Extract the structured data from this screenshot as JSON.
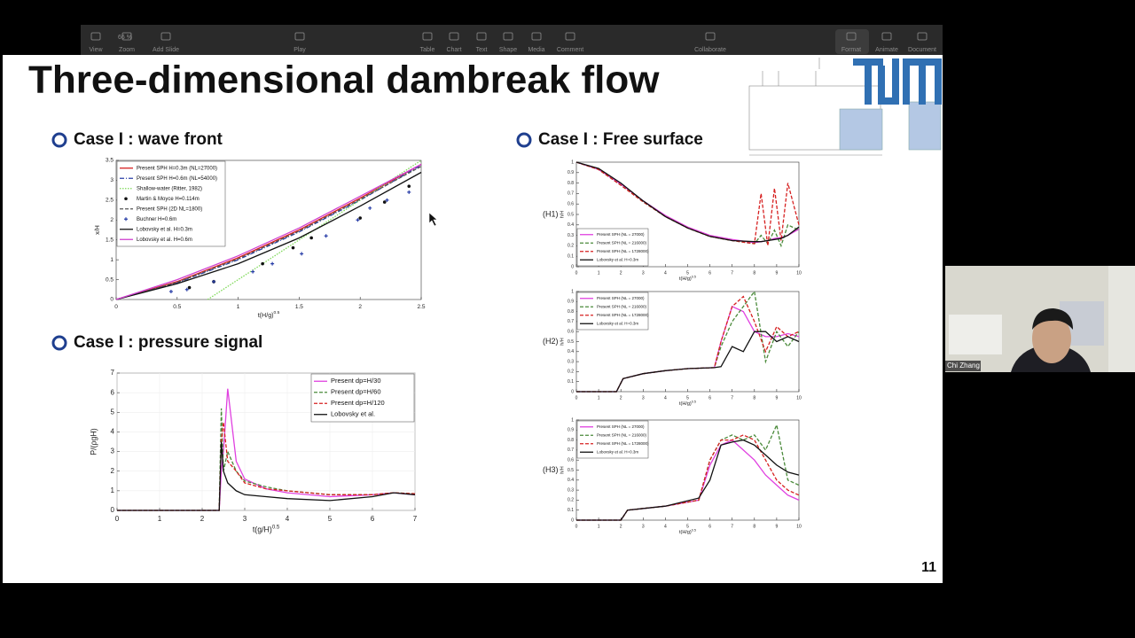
{
  "toolbar": {
    "zoom": "66 %",
    "items": [
      "View",
      "Zoom",
      "Add Slide",
      "Play",
      "Table",
      "Chart",
      "Text",
      "Shape",
      "Media",
      "Comment",
      "Collaborate",
      "Format",
      "Animate",
      "Document"
    ]
  },
  "slide": {
    "title": "Three-dimensional dambreak flow",
    "sections": [
      "Case I  : wave front",
      "Case I : pressure signal",
      "Case I  : Free surface"
    ],
    "page_number": "11"
  },
  "charts": [
    {
      "type": "line",
      "xlim": [
        0,
        2.5
      ],
      "ylim": [
        0,
        3.5
      ],
      "xticks": [
        0,
        0.5,
        1,
        1.5,
        2,
        2.5
      ],
      "yticks": [
        0,
        0.5,
        1,
        1.5,
        2,
        2.5,
        3,
        3.5
      ],
      "xlabel": {
        "text": "t(H/g)",
        "sup": "0.5"
      },
      "ylabel": "x/H",
      "grid": false,
      "legend": "upper left",
      "series": [
        {
          "name": "Present SPH H=0.3m (NL=27000)",
          "color": "#d62020",
          "style": "solid",
          "x": [
            0,
            0.5,
            1,
            1.5,
            2,
            2.5
          ],
          "values": [
            0,
            0.45,
            1.05,
            1.75,
            2.55,
            3.4
          ]
        },
        {
          "name": "Present SPH H=0.6m (NL=54000)",
          "color": "#2a3fa8",
          "style": "dashdot",
          "x": [
            0,
            0.5,
            1,
            1.5,
            2,
            2.5
          ],
          "values": [
            0,
            0.42,
            1.0,
            1.7,
            2.5,
            3.38
          ]
        },
        {
          "name": "Shallow-water (Ritter, 1982)",
          "color": "#7ed957",
          "style": "dotted",
          "x": [
            0.75,
            1.5,
            2.5
          ],
          "values": [
            0,
            1.5,
            3.5
          ]
        },
        {
          "name": "Martin & Moyce H=0.114m",
          "color": "#111111",
          "style": "dot",
          "x": [
            0.6,
            0.8,
            1.2,
            1.45,
            1.6,
            2.0,
            2.2,
            2.4
          ],
          "values": [
            0.3,
            0.45,
            0.9,
            1.3,
            1.55,
            2.05,
            2.45,
            2.85
          ]
        },
        {
          "name": "Present SPH (2D NL=1800)",
          "color": "#555555",
          "style": "dashed",
          "x": [
            0,
            0.5,
            1,
            1.5,
            2,
            2.5
          ],
          "values": [
            0,
            0.43,
            1.02,
            1.72,
            2.52,
            3.35
          ]
        },
        {
          "name": "Buchner H=0.6m",
          "color": "#2a3fa8",
          "style": "plus",
          "x": [
            0.45,
            0.58,
            0.8,
            1.12,
            1.28,
            1.52,
            1.72,
            1.98,
            2.08,
            2.22,
            2.4
          ],
          "values": [
            0.2,
            0.25,
            0.45,
            0.7,
            0.9,
            1.15,
            1.6,
            2.0,
            2.3,
            2.5,
            2.7
          ]
        },
        {
          "name": "Lobovsky et al. H=0.3m",
          "color": "#111111",
          "style": "solid",
          "x": [
            0,
            0.5,
            1,
            1.5,
            2,
            2.5
          ],
          "values": [
            0,
            0.4,
            0.9,
            1.55,
            2.35,
            3.2
          ]
        },
        {
          "name": "Lobovsky et al. H=0.6m",
          "color": "#d040d0",
          "style": "solid",
          "x": [
            0,
            0.5,
            1,
            1.5,
            2,
            2.5
          ],
          "values": [
            0,
            0.5,
            1.1,
            1.8,
            2.6,
            3.4
          ]
        }
      ]
    },
    {
      "type": "line",
      "xlim": [
        0,
        7
      ],
      "ylim": [
        0,
        7
      ],
      "xticks": [
        0,
        1,
        2,
        3,
        4,
        5,
        6,
        7
      ],
      "yticks": [
        0,
        1,
        2,
        3,
        4,
        5,
        6,
        7
      ],
      "xlabel": {
        "text": "t(g/H)",
        "sup": "0.5"
      },
      "ylabel": "P/(ρgH)",
      "grid": true,
      "legend": "upper right",
      "series": [
        {
          "name": "Present dp=H/30",
          "color": "#e040e0",
          "style": "solid",
          "x": [
            0,
            2.4,
            2.45,
            2.5,
            2.6,
            2.8,
            3,
            3.5,
            4,
            5,
            6,
            6.5,
            7
          ],
          "values": [
            0,
            0,
            2,
            3,
            6.2,
            2.5,
            1.6,
            1.1,
            0.9,
            0.7,
            0.8,
            0.9,
            0.8
          ]
        },
        {
          "name": "Present dp=H/60",
          "color": "#4a8a3a",
          "style": "dashed",
          "x": [
            0,
            2.4,
            2.45,
            2.5,
            2.6,
            2.8,
            3,
            3.5,
            4,
            5,
            6,
            6.5,
            7
          ],
          "values": [
            0,
            0,
            5.2,
            2,
            3,
            2,
            1.5,
            1.2,
            1.0,
            0.8,
            0.8,
            0.9,
            0.85
          ]
        },
        {
          "name": "Present dp=H/120",
          "color": "#d62020",
          "style": "dashed",
          "x": [
            0,
            2.4,
            2.45,
            2.5,
            2.6,
            2.8,
            3,
            3.5,
            4,
            5,
            6,
            6.5,
            7
          ],
          "values": [
            0,
            0,
            3.5,
            4.5,
            2.5,
            2,
            1.4,
            1.1,
            1,
            0.8,
            0.8,
            0.9,
            0.85
          ]
        },
        {
          "name": "Lobovsky et al.",
          "color": "#111111",
          "style": "solid",
          "x": [
            0,
            2.4,
            2.45,
            2.5,
            2.6,
            2.8,
            3,
            3.5,
            4,
            5,
            6,
            6.5,
            7
          ],
          "values": [
            0,
            0,
            3.5,
            2,
            1.4,
            1,
            0.8,
            0.7,
            0.6,
            0.5,
            0.7,
            0.9,
            0.8
          ]
        }
      ]
    },
    {
      "type": "line",
      "label": "(H1)",
      "xlim": [
        0,
        10
      ],
      "ylim": [
        0,
        1
      ],
      "xticks": [
        0,
        1,
        2,
        3,
        4,
        5,
        6,
        7,
        8,
        9,
        10
      ],
      "yticks": [
        0,
        0.1,
        0.2,
        0.3,
        0.4,
        0.5,
        0.6,
        0.7,
        0.8,
        0.9,
        1
      ],
      "xlabel": {
        "text": "t(H/g)",
        "sup": "0.5"
      },
      "ylabel": "h/H",
      "grid": false,
      "legend": "lower left",
      "series": [
        {
          "name": "Present SPH (NL = 27000)",
          "color": "#e040e0",
          "style": "solid",
          "x": [
            0,
            1,
            2,
            3,
            4,
            5,
            6,
            7,
            8,
            8.3,
            8.6,
            8.9,
            9.2,
            9.5,
            10
          ],
          "values": [
            1,
            0.93,
            0.79,
            0.63,
            0.49,
            0.38,
            0.3,
            0.26,
            0.23,
            0.24,
            0.25,
            0.27,
            0.28,
            0.3,
            0.36
          ]
        },
        {
          "name": "Present SPH (NL = 216000)",
          "color": "#4a8a3a",
          "style": "dashed",
          "x": [
            0,
            1,
            2,
            3,
            4,
            5,
            6,
            7,
            8,
            8.3,
            8.6,
            8.9,
            9.2,
            9.5,
            10
          ],
          "values": [
            1,
            0.93,
            0.78,
            0.62,
            0.48,
            0.37,
            0.29,
            0.25,
            0.22,
            0.3,
            0.22,
            0.35,
            0.2,
            0.4,
            0.35
          ]
        },
        {
          "name": "Present SPH (NL = 1728000)",
          "color": "#d62020",
          "style": "dashed",
          "x": [
            0,
            1,
            2,
            3,
            4,
            5,
            6,
            7,
            8,
            8.3,
            8.6,
            8.9,
            9.2,
            9.5,
            10
          ],
          "values": [
            1,
            0.93,
            0.78,
            0.62,
            0.48,
            0.37,
            0.29,
            0.25,
            0.22,
            0.7,
            0.2,
            0.75,
            0.25,
            0.8,
            0.4
          ]
        },
        {
          "name": "Lobovsky et al. H=0.3m",
          "color": "#111111",
          "style": "solid",
          "x": [
            0,
            1,
            2,
            3,
            4,
            5,
            6,
            7,
            8,
            8.3,
            8.6,
            8.9,
            9.2,
            9.5,
            10
          ],
          "values": [
            1,
            0.94,
            0.8,
            0.63,
            0.48,
            0.37,
            0.29,
            0.25,
            0.24,
            0.24,
            0.25,
            0.26,
            0.27,
            0.3,
            0.38
          ]
        }
      ]
    },
    {
      "type": "line",
      "label": "(H2)",
      "xlim": [
        0,
        10
      ],
      "ylim": [
        0,
        1
      ],
      "xticks": [
        0,
        1,
        2,
        3,
        4,
        5,
        6,
        7,
        8,
        9,
        10
      ],
      "yticks": [
        0,
        0.1,
        0.2,
        0.3,
        0.4,
        0.5,
        0.6,
        0.7,
        0.8,
        0.9,
        1
      ],
      "xlabel": {
        "text": "t(H/g)",
        "sup": "0.5"
      },
      "ylabel": "h/H",
      "grid": false,
      "legend": "upper left",
      "series": [
        {
          "name": "Present SPH (NL = 27000)",
          "color": "#e040e0",
          "style": "solid",
          "x": [
            0,
            1.8,
            2.1,
            3,
            4,
            5,
            6.2,
            6.5,
            7,
            7.5,
            8,
            8.5,
            9,
            9.5,
            10
          ],
          "values": [
            0,
            0,
            0.13,
            0.18,
            0.21,
            0.23,
            0.24,
            0.5,
            0.85,
            0.8,
            0.6,
            0.55,
            0.55,
            0.58,
            0.55
          ]
        },
        {
          "name": "Present SPH (NL = 216000)",
          "color": "#4a8a3a",
          "style": "dashed",
          "x": [
            0,
            1.8,
            2.1,
            3,
            4,
            5,
            6.2,
            6.5,
            7,
            7.5,
            8,
            8.5,
            9,
            9.5,
            10
          ],
          "values": [
            0,
            0,
            0.13,
            0.18,
            0.21,
            0.23,
            0.24,
            0.45,
            0.7,
            0.85,
            1.0,
            0.3,
            0.6,
            0.45,
            0.6
          ]
        },
        {
          "name": "Present SPH (NL = 1728000)",
          "color": "#d62020",
          "style": "dashed",
          "x": [
            0,
            1.8,
            2.1,
            3,
            4,
            5,
            6.2,
            6.5,
            7,
            7.5,
            8,
            8.5,
            9,
            9.5,
            10
          ],
          "values": [
            0,
            0,
            0.13,
            0.18,
            0.21,
            0.23,
            0.24,
            0.5,
            0.85,
            0.95,
            0.7,
            0.4,
            0.65,
            0.55,
            0.6
          ]
        },
        {
          "name": "Lobovsky et al. H=0.3m",
          "color": "#111111",
          "style": "solid",
          "x": [
            0,
            1.8,
            2.1,
            3,
            4,
            5,
            6.2,
            6.5,
            7,
            7.5,
            8,
            8.5,
            9,
            9.5,
            10
          ],
          "values": [
            0,
            0,
            0.13,
            0.18,
            0.21,
            0.23,
            0.24,
            0.25,
            0.45,
            0.4,
            0.6,
            0.6,
            0.5,
            0.55,
            0.5
          ]
        }
      ]
    },
    {
      "type": "line",
      "label": "(H3)",
      "xlim": [
        0,
        10
      ],
      "ylim": [
        0,
        1
      ],
      "xticks": [
        0,
        1,
        2,
        3,
        4,
        5,
        6,
        7,
        8,
        9,
        10
      ],
      "yticks": [
        0,
        0.1,
        0.2,
        0.3,
        0.4,
        0.5,
        0.6,
        0.7,
        0.8,
        0.9,
        1
      ],
      "xlabel": {
        "text": "t(H/g)",
        "sup": "0.5"
      },
      "ylabel": "h/H",
      "grid": false,
      "legend": "upper left",
      "series": [
        {
          "name": "Present SPH (NL = 27000)",
          "color": "#e040e0",
          "style": "solid",
          "x": [
            0,
            2,
            2.3,
            4,
            5.5,
            6,
            6.5,
            7,
            7.5,
            8,
            8.5,
            9,
            9.5,
            10
          ],
          "values": [
            0,
            0,
            0.1,
            0.14,
            0.2,
            0.55,
            0.75,
            0.8,
            0.7,
            0.6,
            0.45,
            0.35,
            0.25,
            0.2
          ]
        },
        {
          "name": "Present SPH (NL = 216000)",
          "color": "#4a8a3a",
          "style": "dashed",
          "x": [
            0,
            2,
            2.3,
            4,
            5.5,
            6,
            6.5,
            7,
            7.5,
            8,
            8.5,
            9,
            9.5,
            10
          ],
          "values": [
            0,
            0,
            0.1,
            0.14,
            0.2,
            0.6,
            0.8,
            0.85,
            0.8,
            0.85,
            0.7,
            0.95,
            0.4,
            0.35
          ]
        },
        {
          "name": "Present SPH (NL = 1728000)",
          "color": "#d62020",
          "style": "dashed",
          "x": [
            0,
            2,
            2.3,
            4,
            5.5,
            6,
            6.5,
            7,
            7.5,
            8,
            8.5,
            9,
            9.5,
            10
          ],
          "values": [
            0,
            0,
            0.1,
            0.14,
            0.2,
            0.6,
            0.8,
            0.8,
            0.85,
            0.8,
            0.6,
            0.4,
            0.3,
            0.25
          ]
        },
        {
          "name": "Lobovsky et al. H=0.3m",
          "color": "#111111",
          "style": "solid",
          "x": [
            0,
            2,
            2.3,
            4,
            5.5,
            6,
            6.5,
            7,
            7.5,
            8,
            8.5,
            9,
            9.5,
            10
          ],
          "values": [
            0,
            0,
            0.1,
            0.14,
            0.22,
            0.4,
            0.75,
            0.78,
            0.8,
            0.75,
            0.65,
            0.55,
            0.48,
            0.45
          ]
        }
      ]
    }
  ],
  "video": {
    "name": "Chi Zhang"
  }
}
